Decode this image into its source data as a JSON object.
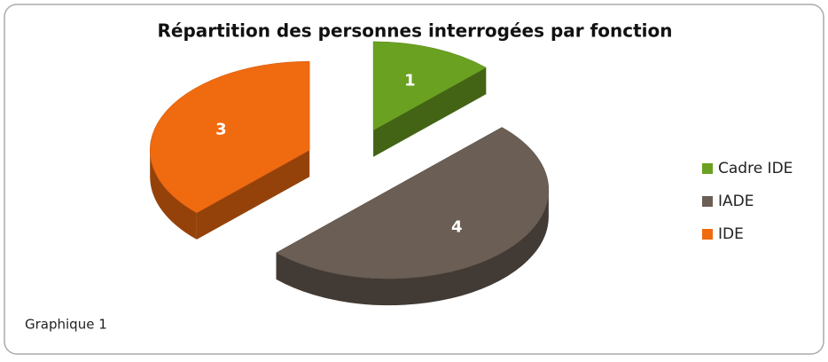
{
  "chart_data": {
    "type": "pie",
    "title": "Répartition des personnes interrogées par fonction",
    "categories": [
      "Cadre IDE",
      "IADE",
      "IDE"
    ],
    "values": [
      1,
      4,
      3
    ],
    "colors": [
      "#6aa121",
      "#6b5e54",
      "#f06a10"
    ],
    "legend": "right",
    "caption": "Graphique 1"
  }
}
